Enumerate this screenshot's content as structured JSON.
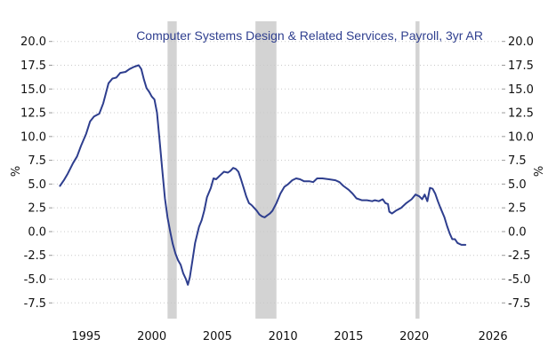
{
  "chart_data": {
    "type": "line",
    "title": "Computer Systems Design & Related Services, Payroll, 3yr AR",
    "ylabel_left": "%",
    "ylabel_right": "%",
    "ylim": [
      -8.5,
      21.0
    ],
    "xlim": [
      1992.5,
      2026.6
    ],
    "y_ticks": [
      20.0,
      17.5,
      15.0,
      12.5,
      10.0,
      7.5,
      5.0,
      2.5,
      0.0,
      -2.5,
      -5.0,
      -7.5
    ],
    "y_tick_labels": [
      "20.0",
      "17.5",
      "15.0",
      "12.5",
      "10.0",
      "7.5",
      "5.0",
      "2.5",
      "0.0",
      "-2.5",
      "-5.0",
      "-7.5"
    ],
    "x_ticks": [
      1995,
      2000,
      2005,
      2010,
      2015,
      2020,
      2026
    ],
    "x_tick_labels": [
      "1995",
      "2000",
      "2005",
      "2010",
      "2015",
      "2020",
      "2026"
    ],
    "grid": "horizontal dotted",
    "recessions": [
      {
        "start": 2001.2,
        "end": 2001.9
      },
      {
        "start": 2007.9,
        "end": 2009.5
      },
      {
        "start": 2020.1,
        "end": 2020.4
      }
    ],
    "series": [
      {
        "color": "#2e3e8e",
        "points": [
          [
            1993.0,
            4.8
          ],
          [
            1993.3,
            5.4
          ],
          [
            1993.6,
            6.1
          ],
          [
            1994.0,
            7.2
          ],
          [
            1994.3,
            7.9
          ],
          [
            1994.6,
            9.0
          ],
          [
            1995.0,
            10.3
          ],
          [
            1995.3,
            11.6
          ],
          [
            1995.6,
            12.1
          ],
          [
            1996.0,
            12.4
          ],
          [
            1996.3,
            13.5
          ],
          [
            1996.7,
            15.6
          ],
          [
            1997.0,
            16.1
          ],
          [
            1997.3,
            16.2
          ],
          [
            1997.6,
            16.7
          ],
          [
            1998.0,
            16.8
          ],
          [
            1998.3,
            17.1
          ],
          [
            1998.6,
            17.3
          ],
          [
            1999.0,
            17.5
          ],
          [
            1999.2,
            17.1
          ],
          [
            1999.4,
            16.0
          ],
          [
            1999.6,
            15.1
          ],
          [
            1999.8,
            14.7
          ],
          [
            2000.0,
            14.2
          ],
          [
            2000.2,
            13.9
          ],
          [
            2000.4,
            12.5
          ],
          [
            2000.6,
            9.5
          ],
          [
            2000.8,
            6.5
          ],
          [
            2001.0,
            3.5
          ],
          [
            2001.2,
            1.5
          ],
          [
            2001.4,
            0.0
          ],
          [
            2001.6,
            -1.3
          ],
          [
            2001.8,
            -2.3
          ],
          [
            2002.0,
            -3.0
          ],
          [
            2002.2,
            -3.5
          ],
          [
            2002.4,
            -4.4
          ],
          [
            2002.6,
            -5.0
          ],
          [
            2002.75,
            -5.6
          ],
          [
            2002.9,
            -4.8
          ],
          [
            2003.1,
            -3.0
          ],
          [
            2003.3,
            -1.2
          ],
          [
            2003.6,
            0.5
          ],
          [
            2003.8,
            1.2
          ],
          [
            2004.0,
            2.2
          ],
          [
            2004.2,
            3.6
          ],
          [
            2004.5,
            4.6
          ],
          [
            2004.7,
            5.6
          ],
          [
            2004.9,
            5.5
          ],
          [
            2005.2,
            5.9
          ],
          [
            2005.5,
            6.3
          ],
          [
            2005.8,
            6.2
          ],
          [
            2006.0,
            6.4
          ],
          [
            2006.2,
            6.7
          ],
          [
            2006.4,
            6.6
          ],
          [
            2006.6,
            6.3
          ],
          [
            2006.8,
            5.5
          ],
          [
            2007.0,
            4.6
          ],
          [
            2007.2,
            3.7
          ],
          [
            2007.4,
            3.0
          ],
          [
            2007.6,
            2.8
          ],
          [
            2007.8,
            2.5
          ],
          [
            2008.0,
            2.2
          ],
          [
            2008.2,
            1.8
          ],
          [
            2008.4,
            1.6
          ],
          [
            2008.6,
            1.5
          ],
          [
            2008.8,
            1.7
          ],
          [
            2009.0,
            1.9
          ],
          [
            2009.2,
            2.2
          ],
          [
            2009.5,
            3.0
          ],
          [
            2009.8,
            4.0
          ],
          [
            2010.1,
            4.7
          ],
          [
            2010.4,
            5.0
          ],
          [
            2010.7,
            5.4
          ],
          [
            2011.0,
            5.6
          ],
          [
            2011.3,
            5.5
          ],
          [
            2011.6,
            5.3
          ],
          [
            2012.0,
            5.3
          ],
          [
            2012.3,
            5.2
          ],
          [
            2012.6,
            5.6
          ],
          [
            2013.0,
            5.6
          ],
          [
            2013.5,
            5.5
          ],
          [
            2014.0,
            5.4
          ],
          [
            2014.3,
            5.2
          ],
          [
            2014.6,
            4.8
          ],
          [
            2015.0,
            4.4
          ],
          [
            2015.3,
            4.0
          ],
          [
            2015.6,
            3.5
          ],
          [
            2016.0,
            3.3
          ],
          [
            2016.4,
            3.3
          ],
          [
            2016.8,
            3.2
          ],
          [
            2017.0,
            3.3
          ],
          [
            2017.3,
            3.2
          ],
          [
            2017.6,
            3.4
          ],
          [
            2017.8,
            3.0
          ],
          [
            2018.0,
            2.9
          ],
          [
            2018.1,
            2.1
          ],
          [
            2018.3,
            1.9
          ],
          [
            2018.6,
            2.2
          ],
          [
            2019.0,
            2.5
          ],
          [
            2019.4,
            3.0
          ],
          [
            2019.8,
            3.4
          ],
          [
            2020.1,
            3.9
          ],
          [
            2020.4,
            3.7
          ],
          [
            2020.6,
            3.4
          ],
          [
            2020.8,
            3.9
          ],
          [
            2021.0,
            3.2
          ],
          [
            2021.2,
            4.6
          ],
          [
            2021.4,
            4.5
          ],
          [
            2021.6,
            4.0
          ],
          [
            2021.8,
            3.2
          ],
          [
            2022.0,
            2.5
          ],
          [
            2022.3,
            1.5
          ],
          [
            2022.5,
            0.6
          ],
          [
            2022.7,
            -0.2
          ],
          [
            2022.9,
            -0.8
          ],
          [
            2023.1,
            -0.8
          ],
          [
            2023.3,
            -1.2
          ],
          [
            2023.6,
            -1.4
          ],
          [
            2023.9,
            -1.4
          ]
        ]
      }
    ]
  }
}
